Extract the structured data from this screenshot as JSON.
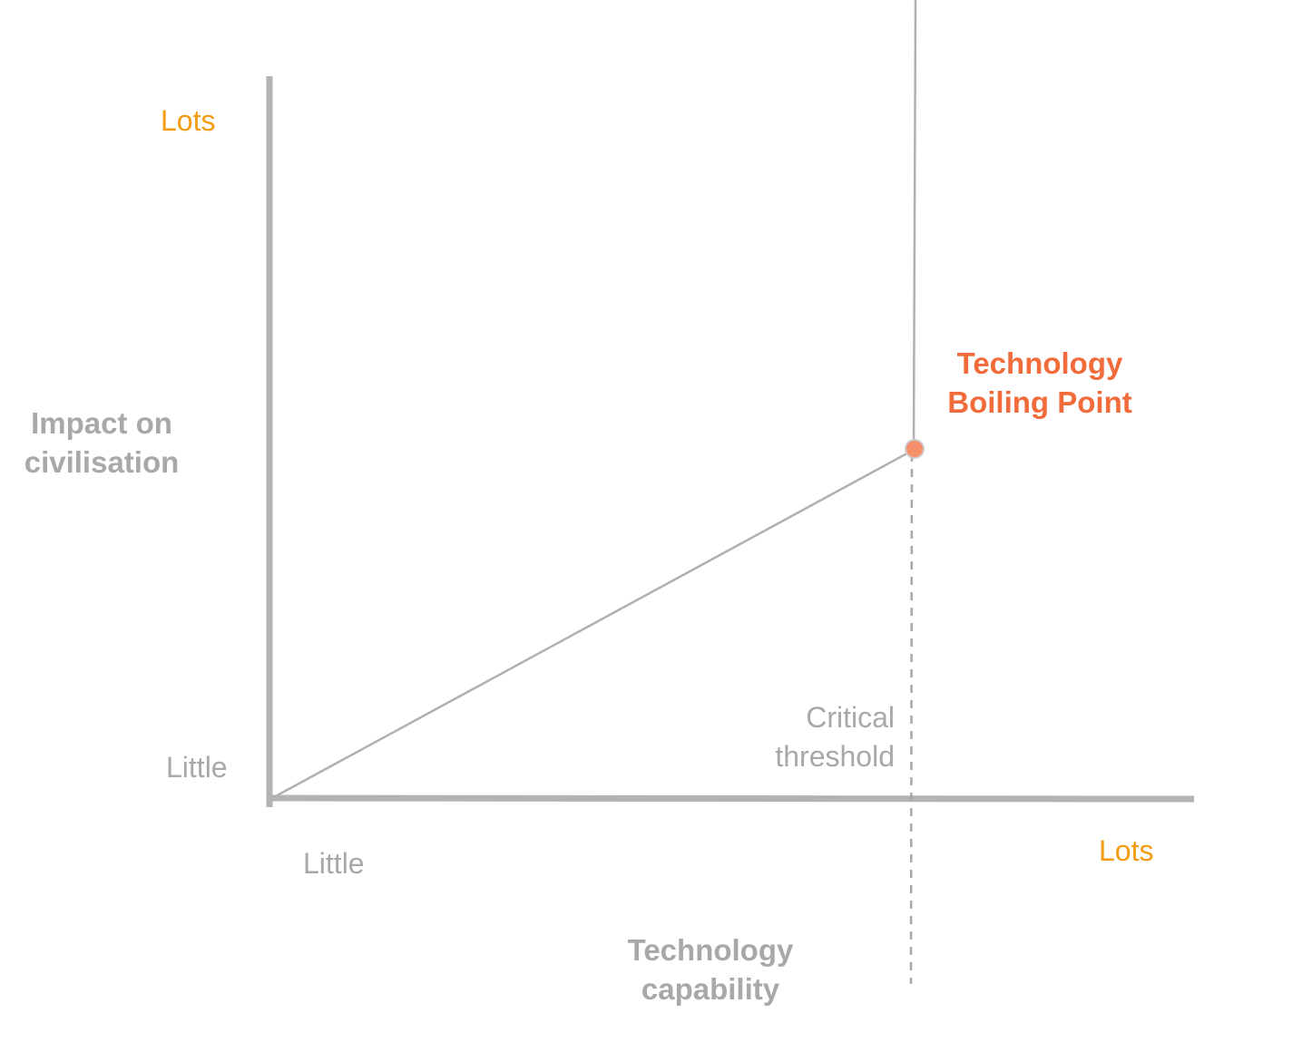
{
  "diagram": {
    "y_axis": {
      "title_lines": [
        "Impact on",
        "civilisation"
      ],
      "top_label": "Lots",
      "bottom_label": "Little"
    },
    "x_axis": {
      "title_lines": [
        "Technology",
        "capability"
      ],
      "left_label": "Little",
      "right_label": "Lots"
    },
    "threshold": {
      "label_lines": [
        "Critical",
        "threshold"
      ]
    },
    "boiling_point": {
      "label_lines": [
        "Technology",
        "Boiling Point"
      ]
    },
    "colors": {
      "axis": "#b3b3b3",
      "curve": "#b0b0b0",
      "extreme_label": "#f39c12",
      "accent": "#f26b3a",
      "point_fill": "#f5906a",
      "text_muted": "#a8a8a8"
    }
  }
}
